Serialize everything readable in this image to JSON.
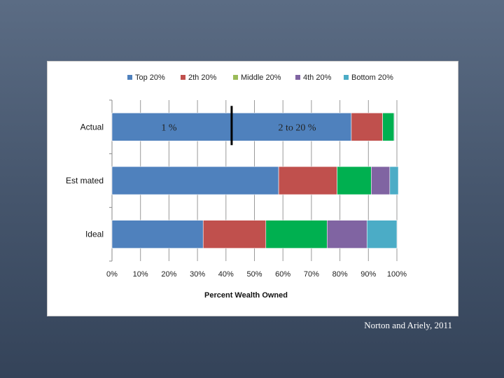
{
  "chart_data": {
    "type": "bar",
    "orientation": "horizontal",
    "stacked": true,
    "title": "",
    "xlabel": "Percent Wealth Owned",
    "ylabel": "",
    "xlim": [
      0,
      100
    ],
    "xticks": [
      "0%",
      "10%",
      "20%",
      "30%",
      "40%",
      "50%",
      "60%",
      "70%",
      "80%",
      "90%",
      "100%"
    ],
    "categories": [
      "Actual",
      "Est mated",
      "Ideal"
    ],
    "series": [
      {
        "name": "Top 20%",
        "color": "#4f81bd",
        "values": [
          84,
          58.5,
          32
        ]
      },
      {
        "name": "2th 20%",
        "color": "#c0504d",
        "values": [
          11,
          20.5,
          22
        ]
      },
      {
        "name": "Middle 20%",
        "color": "#9bbb59",
        "fill_color": "#00b050",
        "values": [
          4,
          12,
          21.5
        ]
      },
      {
        "name": "4th 20%",
        "color": "#8064a2",
        "values": [
          0.2,
          6.5,
          14
        ]
      },
      {
        "name": "Bottom 20%",
        "color": "#4bacc6",
        "values": [
          0.1,
          3,
          10.5
        ]
      }
    ],
    "grid": true,
    "legend": "top",
    "annotations": [
      {
        "text": "1 %",
        "x": 20,
        "category": "Actual"
      },
      {
        "text": "2 to 20 %",
        "x": 65,
        "category": "Actual"
      }
    ],
    "marker_line_x": 42
  },
  "citation": "Norton and Ariely, 2011"
}
